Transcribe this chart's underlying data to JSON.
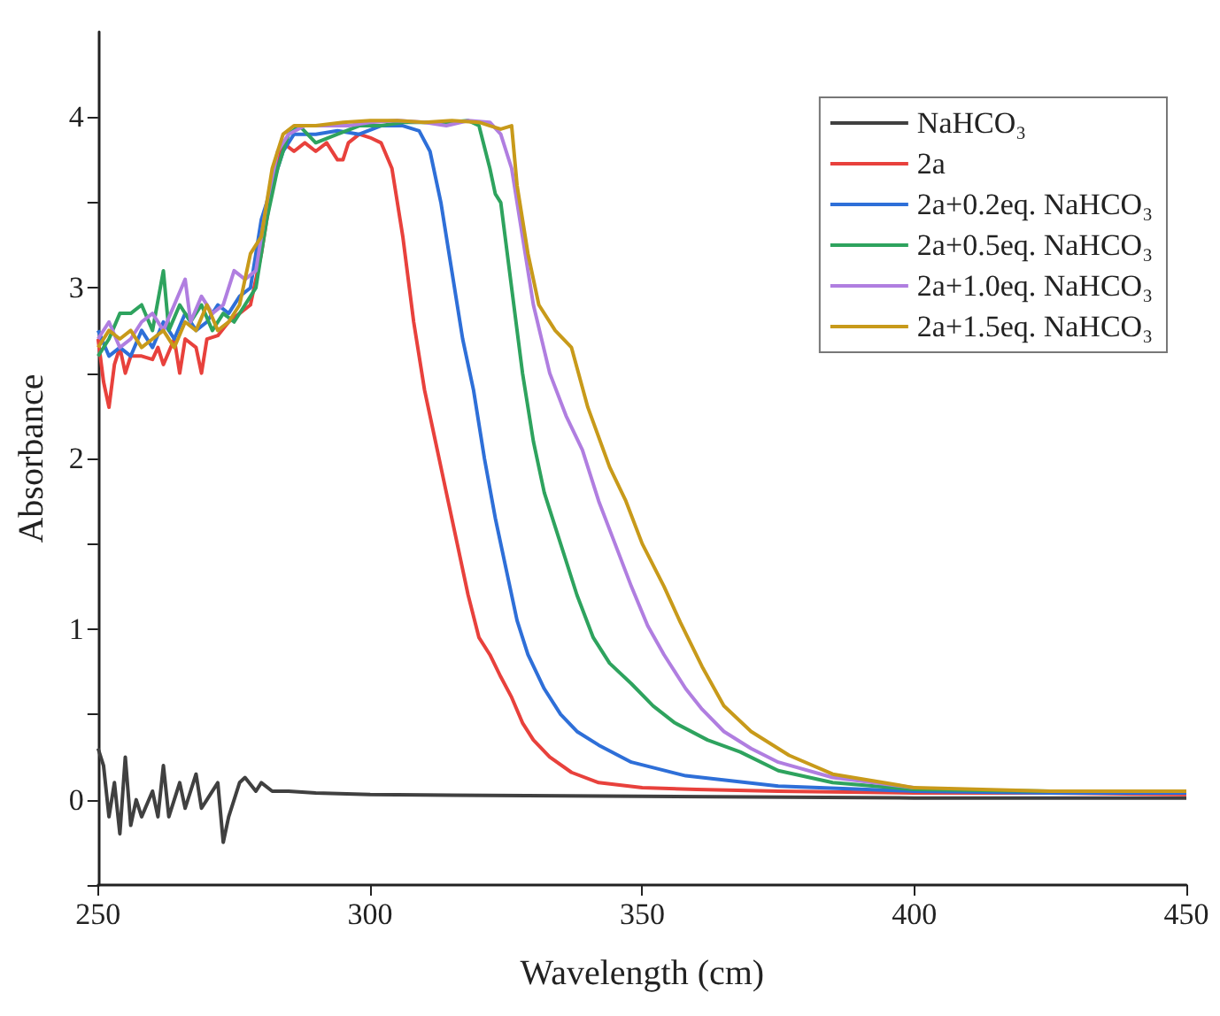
{
  "chart_data": {
    "type": "line",
    "xlabel": "Wavelength (cm)",
    "ylabel": "Absorbance",
    "xlim": [
      250,
      450
    ],
    "xticks": [
      250,
      300,
      350,
      400,
      450
    ],
    "ylim": [
      -0.5,
      4.5
    ],
    "yticks": [
      {
        "value": -0.5,
        "label": null
      },
      0,
      {
        "value": 0.5,
        "label": null
      },
      1,
      {
        "value": 1.5,
        "label": null
      },
      2,
      {
        "value": 2.5,
        "label": null
      },
      3,
      {
        "value": 3.5,
        "label": null
      },
      4
    ],
    "grid": false,
    "legend": "top right",
    "marker": "none",
    "line_style": "solid",
    "series": [
      {
        "name": "NaHCO₃",
        "color": "#404040",
        "x": [
          250,
          251,
          252,
          253,
          254,
          255,
          256,
          257,
          258,
          260,
          261,
          262,
          263,
          265,
          266,
          268,
          269,
          270,
          272,
          273,
          274,
          276,
          277,
          279,
          280,
          282,
          285,
          290,
          300,
          350,
          400,
          450
        ],
        "values": [
          0.3,
          0.2,
          -0.1,
          0.1,
          -0.2,
          0.25,
          -0.15,
          0,
          -0.1,
          0.05,
          -0.1,
          0.2,
          -0.1,
          0.1,
          -0.05,
          0.15,
          -0.05,
          0,
          0.1,
          -0.25,
          -0.1,
          0.1,
          0.13,
          0.05,
          0.1,
          0.05,
          0.05,
          0.04,
          0.03,
          0.02,
          0.01,
          0.01
        ]
      },
      {
        "name": "2a",
        "color": "#e8413c",
        "x": [
          250,
          251,
          252,
          253,
          254,
          255,
          256,
          258,
          260,
          261,
          262,
          264,
          265,
          266,
          268,
          269,
          270,
          272,
          274,
          276,
          278,
          280,
          282,
          284,
          286,
          288,
          290,
          292,
          294,
          295,
          296,
          298,
          300,
          302,
          304,
          306,
          308,
          310,
          312,
          314,
          316,
          318,
          320,
          322,
          324,
          326,
          328,
          330,
          333,
          337,
          342,
          350,
          360,
          375,
          400,
          425,
          450
        ],
        "values": [
          2.7,
          2.45,
          2.3,
          2.55,
          2.65,
          2.5,
          2.6,
          2.6,
          2.58,
          2.65,
          2.55,
          2.7,
          2.5,
          2.7,
          2.65,
          2.5,
          2.7,
          2.72,
          2.8,
          2.85,
          2.9,
          3.2,
          3.6,
          3.85,
          3.8,
          3.85,
          3.8,
          3.85,
          3.75,
          3.75,
          3.85,
          3.9,
          3.88,
          3.85,
          3.7,
          3.3,
          2.8,
          2.4,
          2.1,
          1.8,
          1.5,
          1.2,
          0.95,
          0.85,
          0.72,
          0.6,
          0.45,
          0.35,
          0.25,
          0.16,
          0.1,
          0.07,
          0.06,
          0.05,
          0.04,
          0.04,
          0.03
        ]
      },
      {
        "name": "2a+0.2eq. NaHCO₃",
        "color": "#2e6fd8",
        "x": [
          250,
          252,
          254,
          256,
          258,
          260,
          262,
          264,
          266,
          268,
          270,
          272,
          274,
          276,
          278,
          280,
          282,
          284,
          286,
          290,
          294,
          298,
          302,
          306,
          309,
          311,
          313,
          315,
          317,
          319,
          321,
          323,
          325,
          327,
          329,
          332,
          335,
          338,
          342,
          348,
          358,
          375,
          400,
          425,
          450
        ],
        "values": [
          2.75,
          2.6,
          2.65,
          2.6,
          2.75,
          2.65,
          2.8,
          2.7,
          2.85,
          2.75,
          2.8,
          2.9,
          2.85,
          2.95,
          3.0,
          3.4,
          3.6,
          3.8,
          3.9,
          3.9,
          3.92,
          3.9,
          3.95,
          3.95,
          3.92,
          3.8,
          3.5,
          3.1,
          2.7,
          2.4,
          2.0,
          1.65,
          1.35,
          1.05,
          0.85,
          0.65,
          0.5,
          0.4,
          0.32,
          0.22,
          0.14,
          0.08,
          0.05,
          0.04,
          0.04
        ]
      },
      {
        "name": "2a+0.5eq. NaHCO₃",
        "color": "#2ea35e",
        "x": [
          250,
          252,
          254,
          256,
          258,
          260,
          262,
          263,
          265,
          267,
          269,
          271,
          273,
          275,
          277,
          279,
          281,
          283,
          285,
          287,
          290,
          294,
          298,
          302,
          306,
          314,
          318,
          320,
          322,
          323,
          324,
          326,
          328,
          330,
          332,
          335,
          338,
          341,
          344,
          348,
          352,
          356,
          362,
          368,
          375,
          385,
          400,
          425,
          450
        ],
        "values": [
          2.6,
          2.7,
          2.85,
          2.85,
          2.9,
          2.75,
          3.1,
          2.75,
          2.9,
          2.8,
          2.9,
          2.75,
          2.85,
          2.8,
          2.9,
          3.0,
          3.4,
          3.7,
          3.9,
          3.95,
          3.85,
          3.9,
          3.95,
          3.95,
          3.97,
          3.97,
          3.98,
          3.95,
          3.7,
          3.55,
          3.5,
          3.0,
          2.5,
          2.1,
          1.8,
          1.5,
          1.2,
          0.95,
          0.8,
          0.68,
          0.55,
          0.45,
          0.35,
          0.28,
          0.17,
          0.1,
          0.06,
          0.05,
          0.05
        ]
      },
      {
        "name": "2a+1.0eq. NaHCO₃",
        "color": "#b07ee0",
        "x": [
          250,
          252,
          254,
          256,
          258,
          260,
          262,
          264,
          266,
          267,
          269,
          271,
          273,
          275,
          277,
          279,
          281,
          283,
          285,
          288,
          292,
          296,
          300,
          305,
          310,
          314,
          318,
          322,
          324,
          326,
          328,
          330,
          333,
          336,
          339,
          342,
          345,
          348,
          351,
          354,
          358,
          361,
          365,
          370,
          375,
          385,
          400
        ],
        "values": [
          2.7,
          2.8,
          2.65,
          2.7,
          2.8,
          2.85,
          2.75,
          2.9,
          3.05,
          2.8,
          2.95,
          2.85,
          2.9,
          3.1,
          3.05,
          3.1,
          3.5,
          3.8,
          3.9,
          3.95,
          3.95,
          3.95,
          3.97,
          3.98,
          3.97,
          3.95,
          3.98,
          3.97,
          3.9,
          3.7,
          3.3,
          2.9,
          2.5,
          2.25,
          2.05,
          1.75,
          1.5,
          1.25,
          1.02,
          0.85,
          0.65,
          0.53,
          0.4,
          0.3,
          0.22,
          0.13,
          0.07
        ]
      },
      {
        "name": "2a+1.5eq. NaHCO₃",
        "color": "#c89a1a",
        "x": [
          250,
          252,
          254,
          256,
          258,
          260,
          262,
          264,
          266,
          268,
          270,
          272,
          274,
          276,
          278,
          280,
          282,
          284,
          286,
          290,
          295,
          300,
          305,
          310,
          315,
          320,
          322,
          324,
          326,
          327,
          329,
          331,
          334,
          337,
          340,
          344,
          347,
          350,
          354,
          357,
          361,
          365,
          370,
          377,
          385,
          400,
          425,
          450
        ],
        "values": [
          2.65,
          2.75,
          2.7,
          2.75,
          2.65,
          2.7,
          2.75,
          2.65,
          2.8,
          2.75,
          2.9,
          2.75,
          2.8,
          2.9,
          3.2,
          3.3,
          3.7,
          3.9,
          3.95,
          3.95,
          3.97,
          3.98,
          3.98,
          3.97,
          3.98,
          3.97,
          3.95,
          3.93,
          3.95,
          3.6,
          3.2,
          2.9,
          2.75,
          2.65,
          2.3,
          1.95,
          1.75,
          1.5,
          1.25,
          1.04,
          0.78,
          0.55,
          0.4,
          0.26,
          0.15,
          0.07,
          0.05,
          0.05
        ]
      }
    ]
  }
}
